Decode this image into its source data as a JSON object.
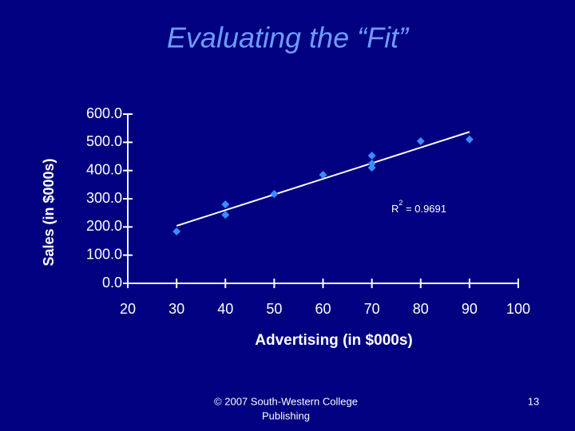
{
  "chart_data": {
    "type": "scatter",
    "title": "Evaluating the “Fit”",
    "x_label": "Advertising (in $000s)",
    "y_label": "Sales (in $000s)",
    "x": [
      30,
      40,
      40,
      50,
      60,
      70,
      70,
      70,
      80,
      90
    ],
    "values": [
      184,
      280,
      243,
      317,
      385,
      453,
      425,
      410,
      504,
      510
    ],
    "color": "#3d8bff",
    "trendline": {
      "x": [
        30,
        90
      ],
      "values": [
        204,
        537
      ],
      "color": "#ffffff"
    },
    "annotation": {
      "base": "R",
      "sup": "2",
      "rest": " = 0.9691"
    },
    "xlim": [
      20,
      100
    ],
    "xticks": [
      20,
      30,
      40,
      50,
      60,
      70,
      80,
      90,
      100
    ],
    "ylim": [
      0,
      600
    ],
    "yticks": [
      {
        "value": 0,
        "label": "0.0"
      },
      {
        "value": 100,
        "label": "100.0"
      },
      {
        "value": 200,
        "label": "200.0"
      },
      {
        "value": 300,
        "label": "300.0"
      },
      {
        "value": 400,
        "label": "400.0"
      },
      {
        "value": 500,
        "label": "500.0"
      },
      {
        "value": 600,
        "label": "600.0"
      }
    ]
  },
  "footer": {
    "copyright": [
      "© 2007 South-Western College",
      "Publishing"
    ],
    "page_number": "13"
  }
}
